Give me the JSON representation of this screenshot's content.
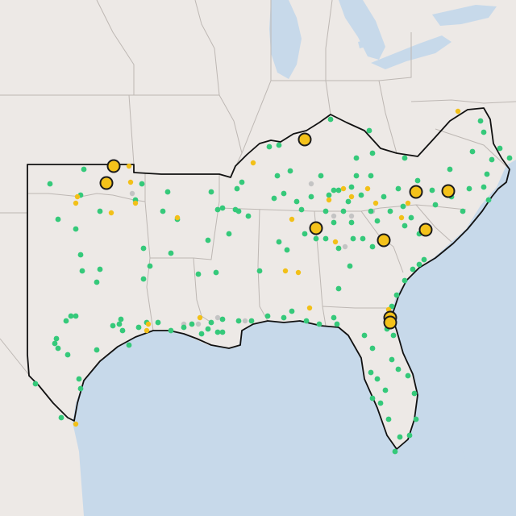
{
  "map": {
    "colors": {
      "land": "#ede9e6",
      "water": "#c7d9ea",
      "state_border": "#bdb7b3",
      "region_outline": "#111111",
      "green": "#35c97a",
      "yellow": "#f2c018",
      "gray": "#c4c4c4",
      "large_marker_fill": "#f4c21a",
      "large_marker_stroke": "#1b1b1b"
    },
    "legend": "none",
    "marker_categories": [
      "green",
      "yellow",
      "gray",
      "large-highlight"
    ]
  }
}
